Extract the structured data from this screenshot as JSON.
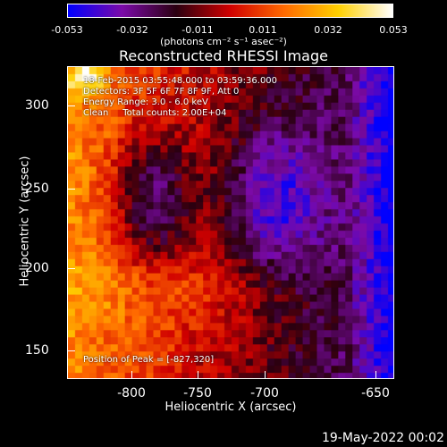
{
  "colorbar": {
    "ticks": [
      "-0.053",
      "-0.032",
      "-0.011",
      "0.011",
      "0.032",
      "0.053"
    ],
    "units": "(photons cm⁻² s⁻¹ asec⁻²)",
    "gradient": [
      "#0000ff",
      "#7b0aa8",
      "#2a0010",
      "#d00000",
      "#ff6a00",
      "#ffd000",
      "#ffffff"
    ]
  },
  "title": "Reconstructed RHESSI Image",
  "info": {
    "line1": "18-Feb-2015 03:55:48.000 to 03:59:36.000",
    "line2": "Detectors: 3F 5F 6F 7F 8F 9F, Att 0",
    "line3": "Energy Range: 3.0 - 6.0 keV",
    "line4": "Clean     Total counts: 2.00E+04",
    "peak": "Position of Peak = [-827,320]"
  },
  "axes": {
    "xlabel": "Heliocentric X (arcsec)",
    "ylabel": "Heliocentric Y (arcsec)",
    "xticks": [
      "-800",
      "-750",
      "-700",
      "-650"
    ],
    "yticks": [
      "300",
      "250",
      "200",
      "150"
    ]
  },
  "datestamp": "19-May-2022 00:02"
}
